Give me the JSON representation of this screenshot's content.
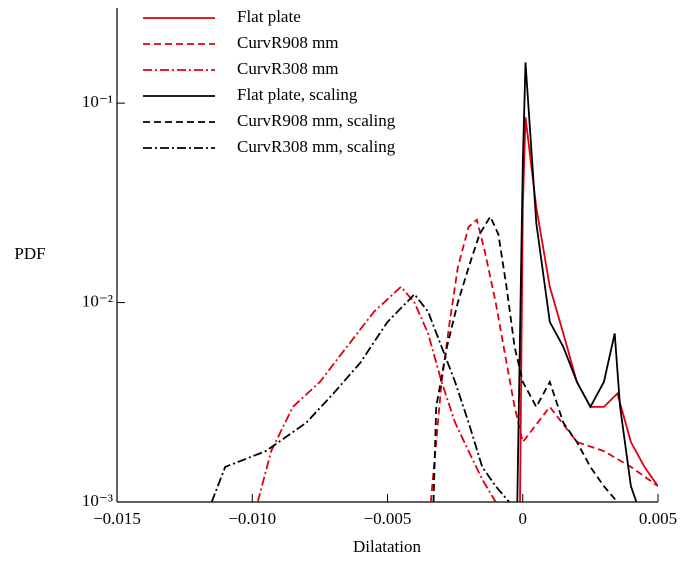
{
  "chart_data": {
    "type": "line",
    "xlabel": "Dilatation",
    "ylabel": "PDF",
    "log_y": true,
    "legend": "upper left",
    "xlim": [
      -0.015,
      0.005
    ],
    "ylim": [
      0.001,
      0.3
    ],
    "xticks": [
      {
        "value": -0.015,
        "label": "−0.015"
      },
      {
        "value": -0.01,
        "label": "−0.010"
      },
      {
        "value": -0.005,
        "label": "−0.005"
      },
      0,
      0.005
    ],
    "yticks": [
      {
        "value": 0.001,
        "label": "10⁻³"
      },
      {
        "value": 0.01,
        "label": "10⁻²"
      },
      {
        "value": 0.1,
        "label": "10⁻¹"
      }
    ],
    "series": [
      {
        "name": "Flat plate",
        "color": "#e0000f",
        "style": "solid",
        "x": [
          -0.0001,
          0.0,
          0.0001,
          0.0005,
          0.001,
          0.0015,
          0.002,
          0.0025,
          0.003,
          0.0035,
          0.004,
          0.0045,
          0.005
        ],
        "values": [
          0.001,
          0.03,
          0.085,
          0.03,
          0.012,
          0.007,
          0.004,
          0.003,
          0.003,
          0.0035,
          0.002,
          0.0015,
          0.0012
        ]
      },
      {
        "name": "CurvR908 mm",
        "color": "#e0000f",
        "style": "dashed",
        "x": [
          -0.0034,
          -0.003,
          -0.0027,
          -0.0024,
          -0.002,
          -0.0017,
          -0.0014,
          -0.001,
          -0.0006,
          -0.0003,
          0.0,
          0.001,
          0.002,
          0.003,
          0.004,
          0.005
        ],
        "values": [
          0.001,
          0.004,
          0.008,
          0.015,
          0.024,
          0.026,
          0.018,
          0.01,
          0.005,
          0.003,
          0.002,
          0.003,
          0.002,
          0.0018,
          0.0015,
          0.0012
        ]
      },
      {
        "name": "CurvR308 mm",
        "color": "#e0000f",
        "style": "dashdot",
        "x": [
          -0.0098,
          -0.0093,
          -0.0085,
          -0.0075,
          -0.0065,
          -0.0055,
          -0.0045,
          -0.004,
          -0.0035,
          -0.003,
          -0.0025,
          -0.002,
          -0.0015,
          -0.001
        ],
        "values": [
          0.001,
          0.0018,
          0.003,
          0.004,
          0.006,
          0.009,
          0.012,
          0.01,
          0.007,
          0.004,
          0.0025,
          0.0018,
          0.0013,
          0.001
        ]
      },
      {
        "name": "Flat plate, scaling",
        "color": "#000000",
        "style": "solid",
        "x": [
          -0.0002,
          0.0,
          0.0001,
          0.0005,
          0.001,
          0.0015,
          0.002,
          0.0025,
          0.003,
          0.0034,
          0.0036,
          0.004,
          0.0042
        ],
        "values": [
          0.001,
          0.05,
          0.16,
          0.025,
          0.008,
          0.006,
          0.004,
          0.003,
          0.004,
          0.007,
          0.003,
          0.0012,
          0.001
        ]
      },
      {
        "name": "CurvR908 mm, scaling",
        "color": "#000000",
        "style": "dashed",
        "x": [
          -0.0033,
          -0.0032,
          -0.0028,
          -0.0024,
          -0.002,
          -0.0016,
          -0.0012,
          -0.0009,
          -0.0006,
          -0.0003,
          0.0,
          0.0005,
          0.001,
          0.0015,
          0.002,
          0.0025,
          0.003,
          0.0035
        ],
        "values": [
          0.001,
          0.003,
          0.006,
          0.01,
          0.015,
          0.022,
          0.027,
          0.022,
          0.012,
          0.006,
          0.004,
          0.003,
          0.004,
          0.0025,
          0.002,
          0.0015,
          0.0012,
          0.001
        ]
      },
      {
        "name": "CurvR308 mm, scaling",
        "color": "#000000",
        "style": "dashdot",
        "x": [
          -0.0115,
          -0.011,
          -0.0095,
          -0.008,
          -0.007,
          -0.006,
          -0.005,
          -0.004,
          -0.0035,
          -0.003,
          -0.0025,
          -0.002,
          -0.0015,
          -0.001,
          -0.0005
        ],
        "values": [
          0.001,
          0.0015,
          0.0018,
          0.0025,
          0.0035,
          0.005,
          0.008,
          0.011,
          0.009,
          0.006,
          0.004,
          0.0025,
          0.0015,
          0.0012,
          0.001
        ]
      }
    ]
  }
}
